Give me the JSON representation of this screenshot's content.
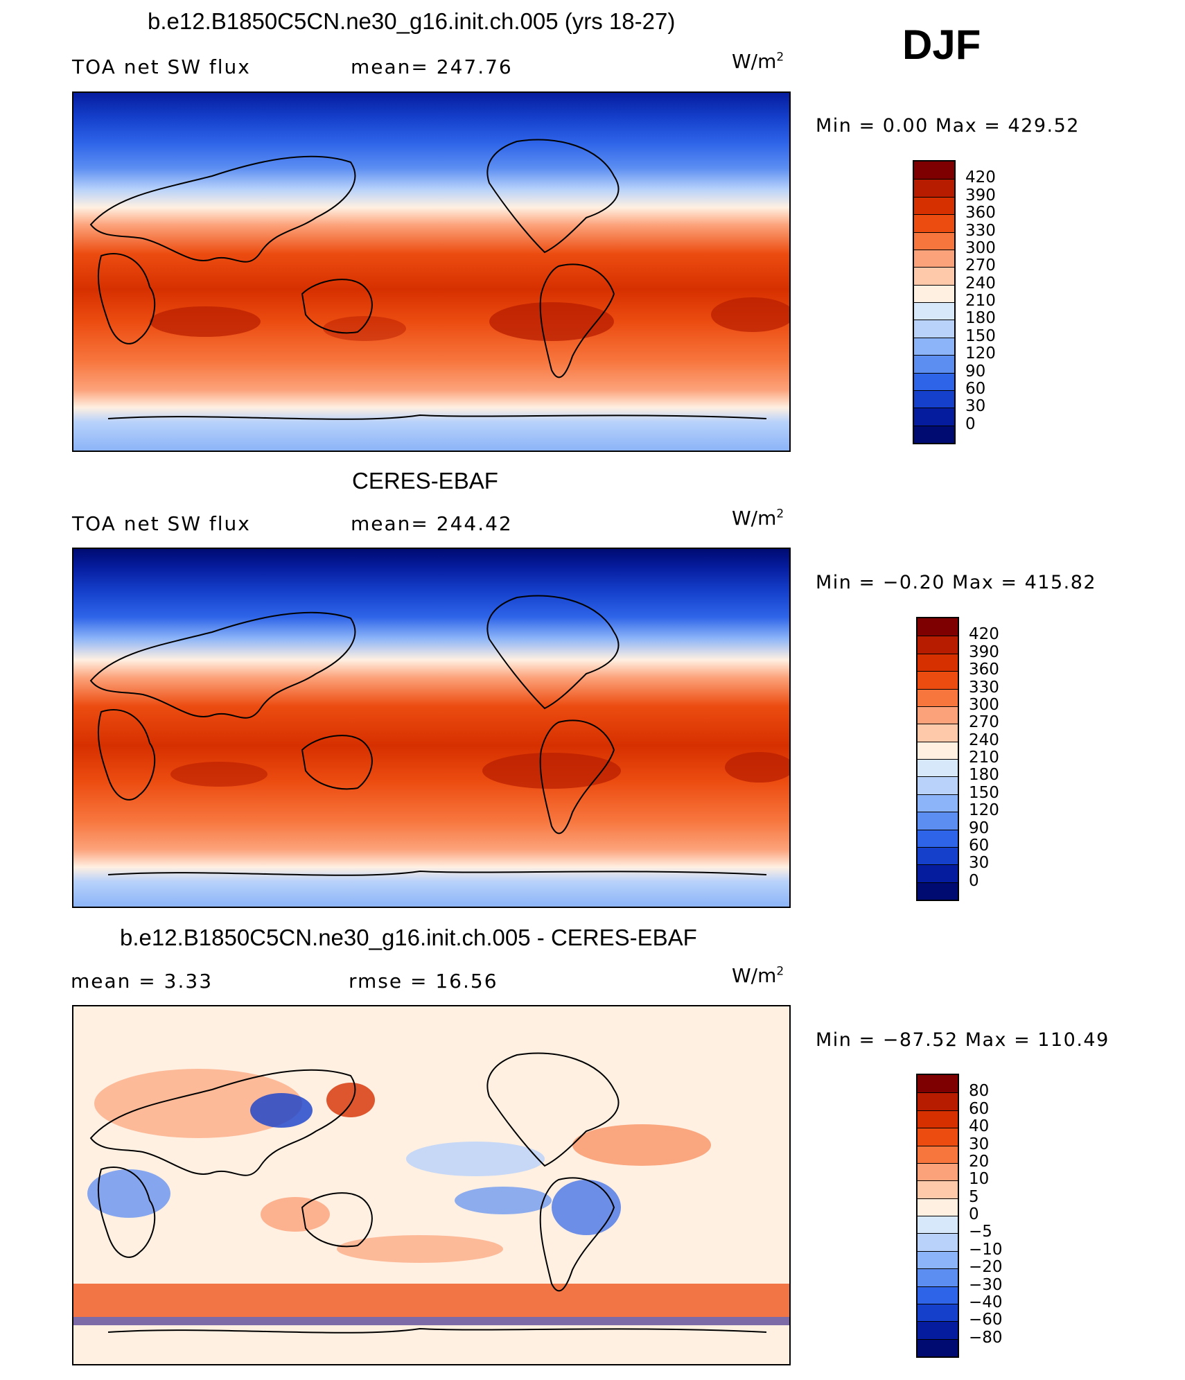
{
  "season": "DJF",
  "panels": [
    {
      "id": "model",
      "title": "b.e12.B1850C5CN.ne30_g16.init.ch.005 (yrs 18-27)",
      "left_text": "TOA net SW flux",
      "mid_text": "mean= 247.76",
      "units": "W/m",
      "units_sup": "2",
      "minmax": "Min =     0.00  Max  =  429.52",
      "colorbar": {
        "labels": [
          "420",
          "390",
          "360",
          "330",
          "300",
          "270",
          "240",
          "210",
          "180",
          "150",
          "120",
          "90",
          "60",
          "30",
          "0"
        ],
        "colors": [
          "#7f0000",
          "#b71c00",
          "#d63000",
          "#ec4c10",
          "#f7763e",
          "#fca27a",
          "#fdc9aa",
          "#fff0e2",
          "#d8e8fb",
          "#b8d2fa",
          "#8cb4f8",
          "#5c8ef2",
          "#2e64e8",
          "#1540cc",
          "#061c9e",
          "#000b72"
        ]
      }
    },
    {
      "id": "obs",
      "title": "CERES-EBAF",
      "left_text": "TOA net SW flux",
      "mid_text": "mean= 244.42",
      "units": "W/m",
      "units_sup": "2",
      "minmax": "Min =   −0.20  Max  =  415.82",
      "colorbar": {
        "labels": [
          "420",
          "390",
          "360",
          "330",
          "300",
          "270",
          "240",
          "210",
          "180",
          "150",
          "120",
          "90",
          "60",
          "30",
          "0"
        ],
        "colors": [
          "#7f0000",
          "#b71c00",
          "#d63000",
          "#ec4c10",
          "#f7763e",
          "#fca27a",
          "#fdc9aa",
          "#fff0e2",
          "#d8e8fb",
          "#b8d2fa",
          "#8cb4f8",
          "#5c8ef2",
          "#2e64e8",
          "#1540cc",
          "#061c9e",
          "#000b72"
        ]
      }
    },
    {
      "id": "diff",
      "title": "b.e12.B1850C5CN.ne30_g16.init.ch.005 - CERES-EBAF",
      "left_text": "mean =     3.33",
      "mid_text": "rmse =    16.56",
      "units": "W/m",
      "units_sup": "2",
      "minmax": "Min  = −87.52  Max  =  110.49",
      "colorbar": {
        "labels": [
          "80",
          "60",
          "40",
          "30",
          "20",
          "10",
          "5",
          "0",
          "−5",
          "−10",
          "−20",
          "−30",
          "−40",
          "−60",
          "−80"
        ],
        "colors": [
          "#7f0000",
          "#b71c00",
          "#d63000",
          "#ec4c10",
          "#f7763e",
          "#fca27a",
          "#fdc9aa",
          "#fff0e2",
          "#d8e8fb",
          "#b8d2fa",
          "#8cb4f8",
          "#5c8ef2",
          "#2e64e8",
          "#1540cc",
          "#061c9e",
          "#000b72"
        ]
      }
    }
  ]
}
